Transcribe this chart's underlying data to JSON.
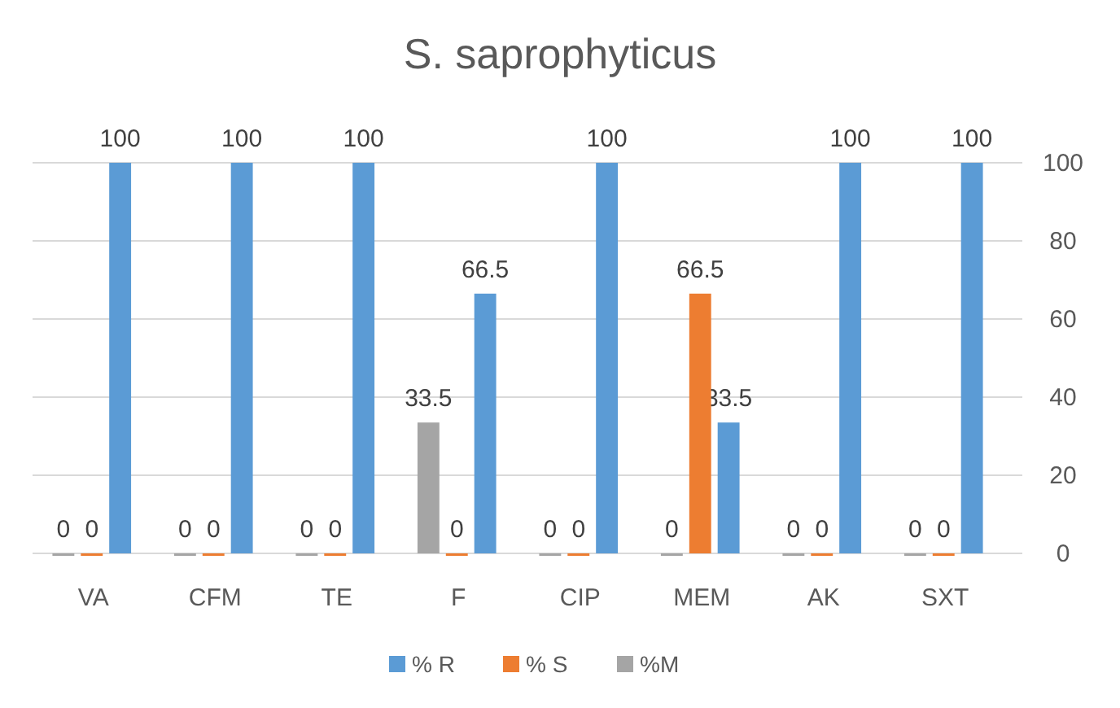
{
  "chart_data": {
    "type": "bar",
    "title": "S. saprophyticus",
    "categories": [
      "VA",
      "CFM",
      "TE",
      "F",
      "CIP",
      "MEM",
      "AK",
      "SXT"
    ],
    "series": [
      {
        "name": "% R",
        "color": "#5b9bd5",
        "values": [
          100,
          100,
          100,
          66.5,
          100,
          33.5,
          100,
          100
        ]
      },
      {
        "name": "% S",
        "color": "#ed7d31",
        "values": [
          0,
          0,
          0,
          0,
          0,
          66.5,
          0,
          0
        ]
      },
      {
        "name": "%M",
        "color": "#a5a5a5",
        "values": [
          0,
          0,
          0,
          33.5,
          0,
          0,
          0,
          0
        ]
      }
    ],
    "ylim": [
      0,
      100
    ],
    "yticks": [
      0,
      20,
      40,
      60,
      80,
      100
    ],
    "grid": "y",
    "legend": "bottom",
    "data_labels": true
  }
}
